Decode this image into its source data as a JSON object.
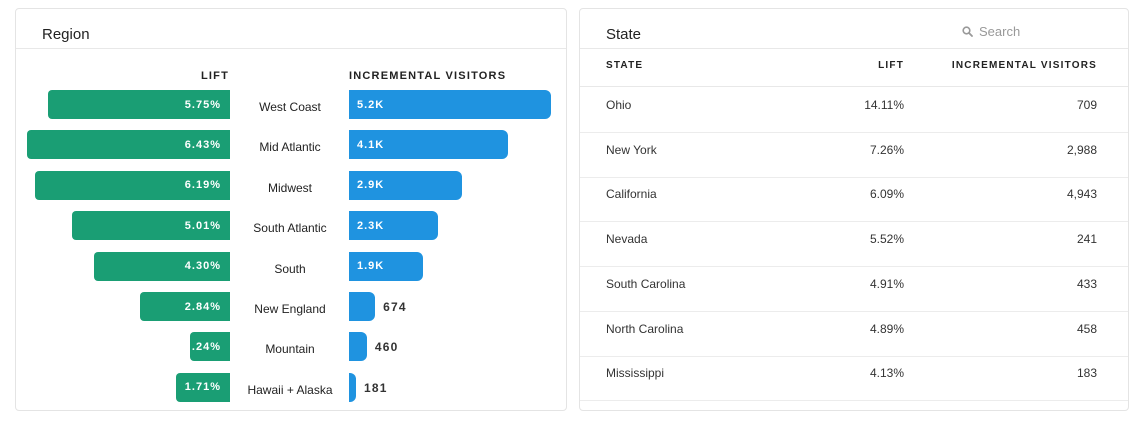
{
  "region": {
    "title": "Region",
    "lift_header": "LIFT",
    "visitors_header": "INCREMENTAL VISITORS",
    "colors": {
      "lift": "#1a9e74",
      "visitors": "#1f93e0"
    },
    "rows": [
      {
        "region": "West Coast",
        "lift": "5.75%",
        "lift_value": 5.75,
        "visitors": "5.2K",
        "visitors_value": 5200
      },
      {
        "region": "Mid Atlantic",
        "lift": "6.43%",
        "lift_value": 6.43,
        "visitors": "4.1K",
        "visitors_value": 4100
      },
      {
        "region": "Midwest",
        "lift": "6.19%",
        "lift_value": 6.19,
        "visitors": "2.9K",
        "visitors_value": 2900
      },
      {
        "region": "South Atlantic",
        "lift": "5.01%",
        "lift_value": 5.01,
        "visitors": "2.3K",
        "visitors_value": 2300
      },
      {
        "region": "South",
        "lift": "4.30%",
        "lift_value": 4.3,
        "visitors": "1.9K",
        "visitors_value": 1900
      },
      {
        "region": "New England",
        "lift": "2.84%",
        "lift_value": 2.84,
        "visitors": "674",
        "visitors_value": 674
      },
      {
        "region": "Mountain",
        "lift": ".24%",
        "lift_value": 0.24,
        "visitors": "460",
        "visitors_value": 460
      },
      {
        "region": "Hawaii + Alaska",
        "lift": "1.71%",
        "lift_value": 1.71,
        "visitors": "181",
        "visitors_value": 181
      }
    ]
  },
  "state": {
    "title": "State",
    "search_placeholder": "Search",
    "search_icon": "search-icon",
    "columns": [
      "STATE",
      "LIFT",
      "INCREMENTAL VISITORS"
    ],
    "rows": [
      {
        "state": "Ohio",
        "lift": "14.11%",
        "visitors": "709"
      },
      {
        "state": "New York",
        "lift": "7.26%",
        "visitors": "2,988"
      },
      {
        "state": "California",
        "lift": "6.09%",
        "visitors": "4,943"
      },
      {
        "state": "Nevada",
        "lift": "5.52%",
        "visitors": "241"
      },
      {
        "state": "South Carolina",
        "lift": "4.91%",
        "visitors": "433"
      },
      {
        "state": "North Carolina",
        "lift": "4.89%",
        "visitors": "458"
      },
      {
        "state": "Mississippi",
        "lift": "4.13%",
        "visitors": "183"
      }
    ]
  }
}
